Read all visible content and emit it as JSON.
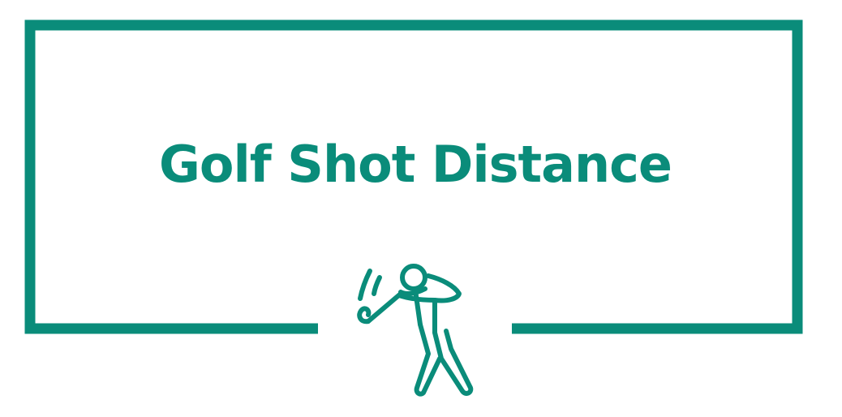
{
  "page": {
    "title": "Golf Shot Distance",
    "accent_color": "#0a8c7a",
    "icon": "golfer-swing-icon"
  }
}
